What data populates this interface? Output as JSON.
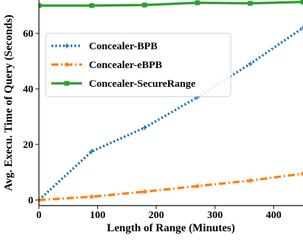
{
  "chart_data": {
    "type": "line",
    "title": "",
    "xlabel": "Length of Range (Minutes)",
    "ylabel": "Avg. Execu. Time of Query (Seconds)",
    "xlim": [
      0,
      450
    ],
    "ylim": [
      -2,
      72
    ],
    "xticks": [
      0,
      100,
      200,
      300,
      400
    ],
    "yticks": [
      0,
      20,
      40,
      60
    ],
    "grid": false,
    "legend_position": "upper-left",
    "series": [
      {
        "name": "Concealer-BPB",
        "color": "#1f77b4",
        "style": "dotted",
        "marker": "plus",
        "x": [
          0,
          90,
          180,
          270,
          360,
          450
        ],
        "y": [
          0,
          17.5,
          26,
          37,
          49,
          62
        ]
      },
      {
        "name": "Concealer-eBPB",
        "color": "#ff7f0e",
        "style": "dashdot",
        "marker": "star",
        "x": [
          0,
          90,
          180,
          270,
          360,
          450
        ],
        "y": [
          0,
          1.2,
          3,
          5,
          7,
          9.5
        ]
      },
      {
        "name": "Concealer-SecureRange",
        "color": "#2ca02c",
        "style": "solid",
        "marker": "square",
        "x": [
          0,
          90,
          180,
          270,
          360,
          450
        ],
        "y": [
          70,
          70,
          70.2,
          71,
          70.8,
          71.3
        ]
      }
    ]
  }
}
